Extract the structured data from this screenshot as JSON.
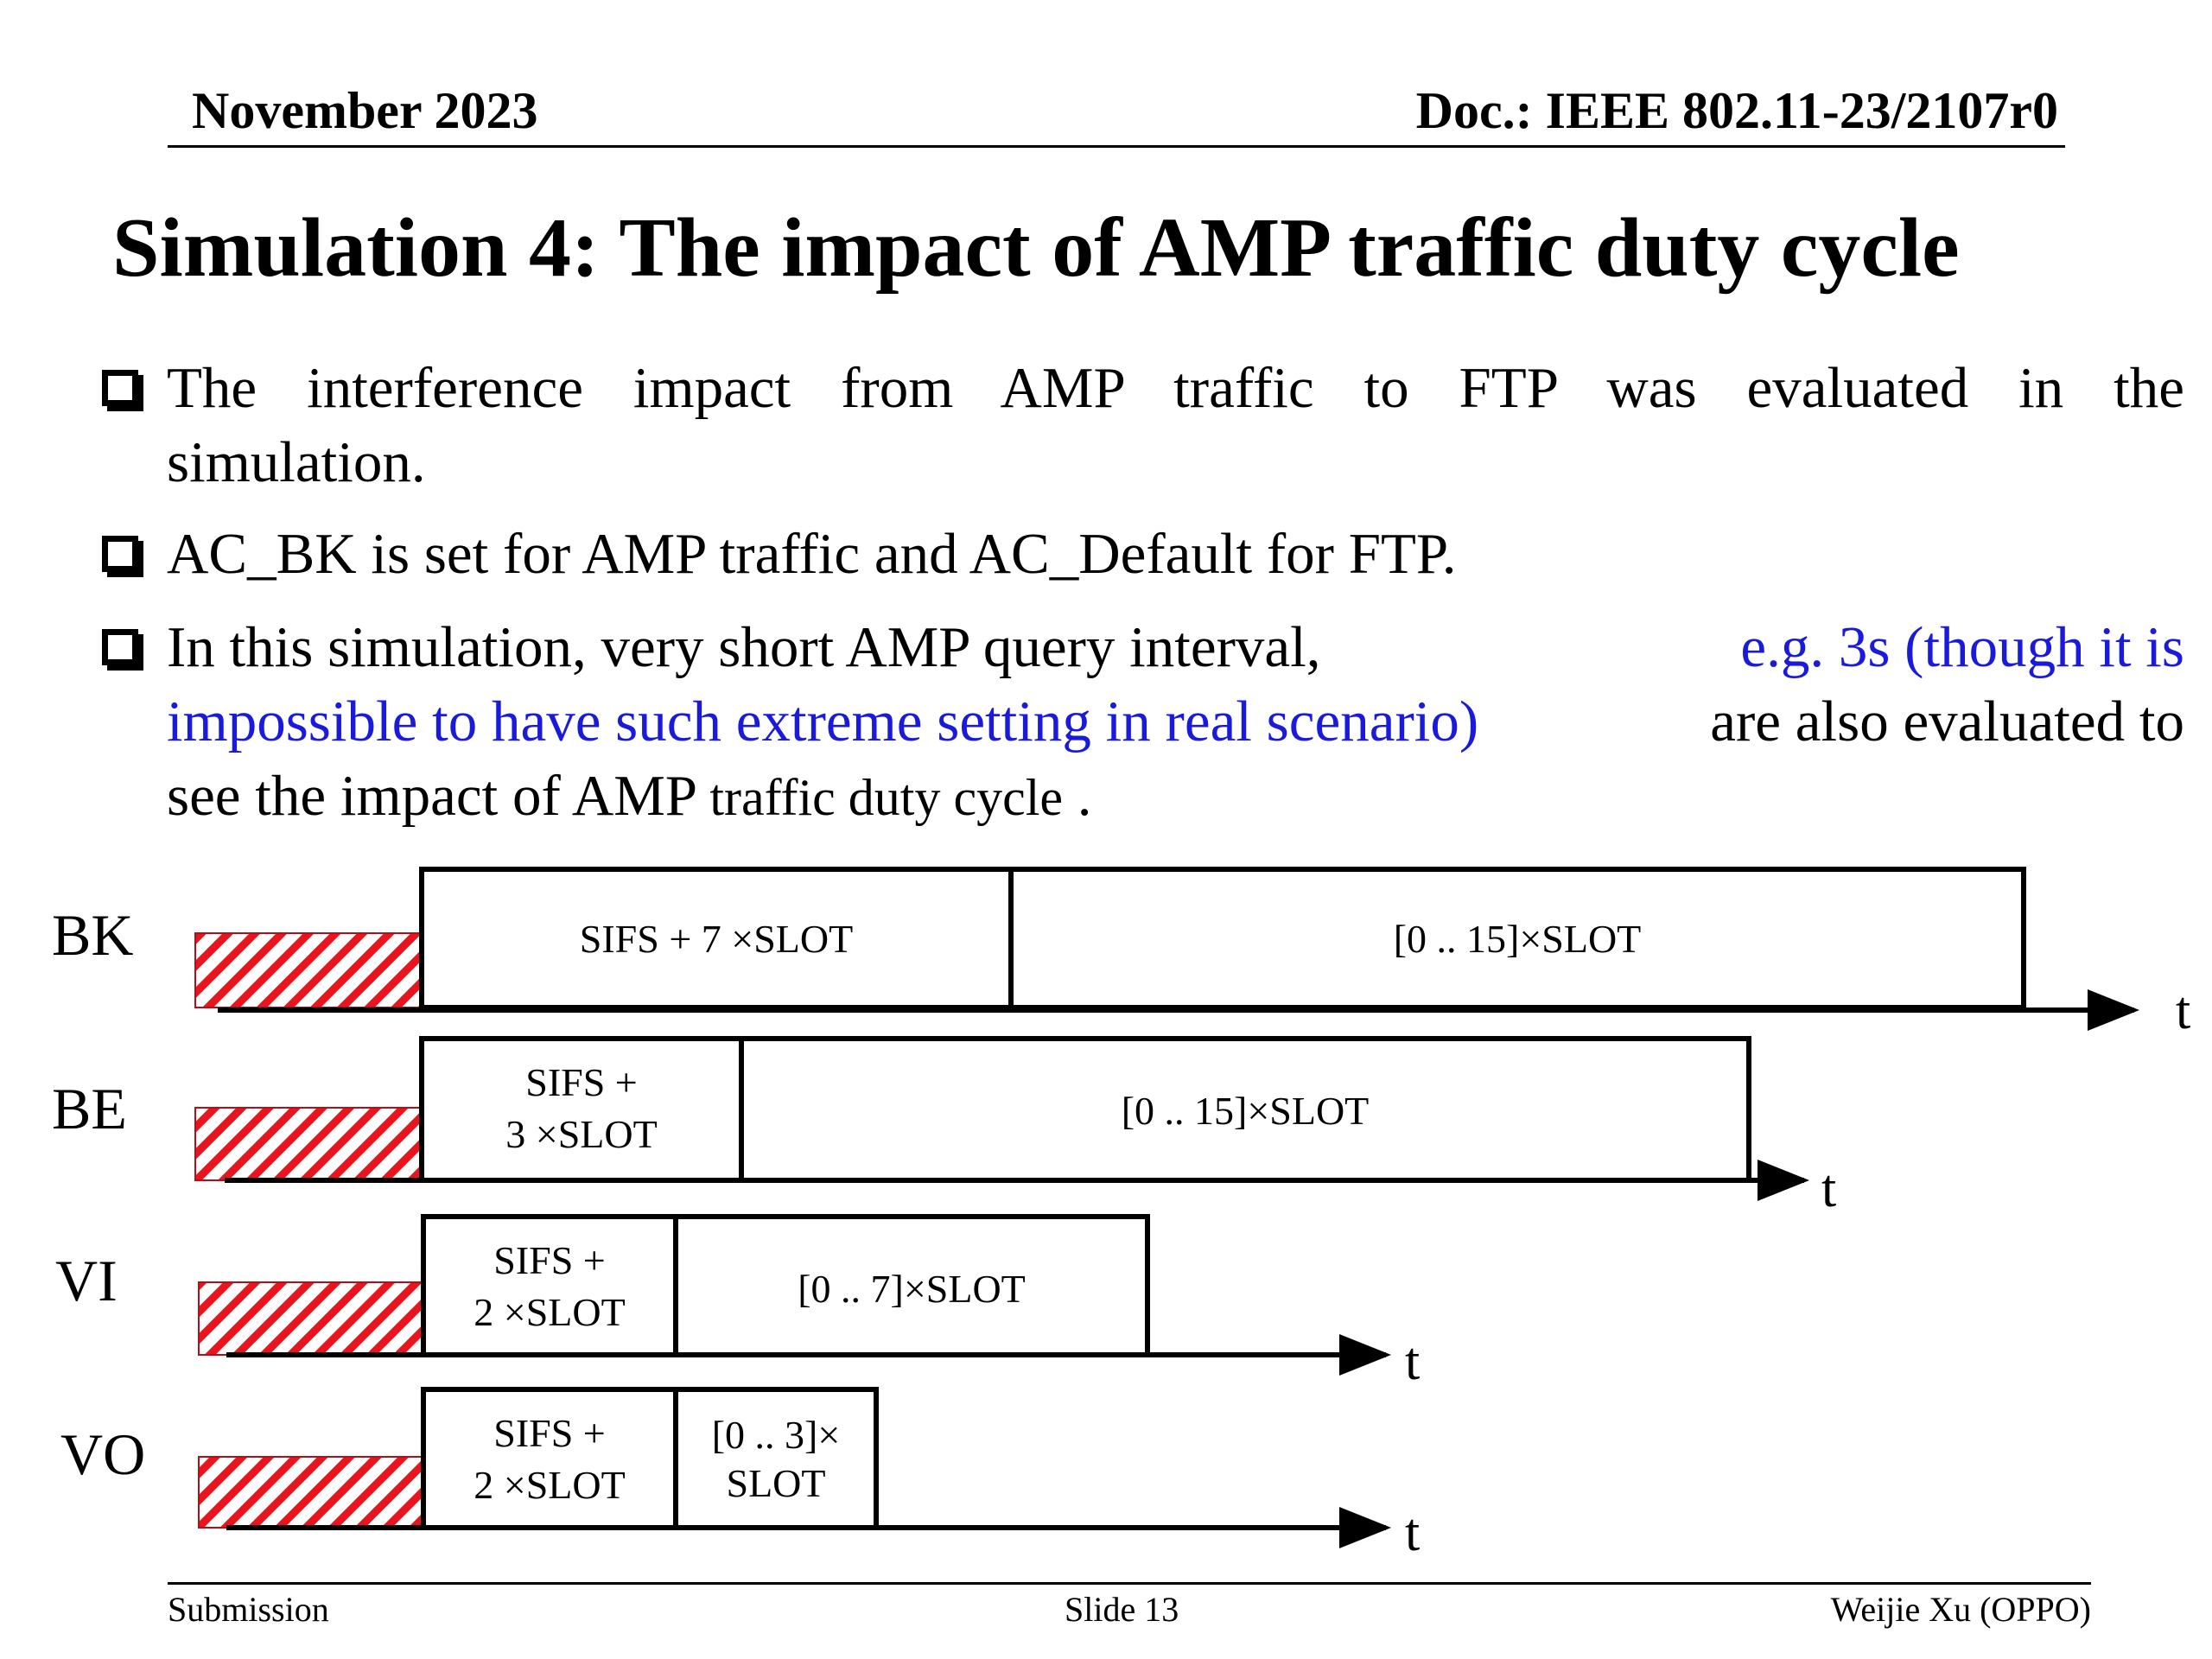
{
  "header": {
    "date": "November 2023",
    "doc": "Doc.: IEEE 802.11-23/2107r0"
  },
  "title": "Simulation 4: The impact of AMP traffic duty cycle",
  "bullets": [
    {
      "text_line1": "The interference impact from AMP traffic to FTP was evaluated in the",
      "text_line2": "simulation."
    },
    {
      "text": "AC_BK is set for AMP traffic and AC_Default for FTP."
    },
    {
      "line1_black": "In this simulation, very short AMP query interval,",
      "line1_blue": "e.g. 3s (though it is",
      "line2_blue": "impossible to have such extreme setting in real scenario)",
      "line2_black": "are also evaluated to",
      "line3_a": "see the impact of AMP",
      "line3_b": "traffic duty cycle",
      "line3_c": " ."
    }
  ],
  "diagram": {
    "rows": [
      {
        "label": "BK",
        "aifs_line1": "SIFS + 7 ×SLOT",
        "aifs_line2": "",
        "backoff_line1": "[0 .. 15]×SLOT",
        "backoff_line2": "",
        "axis": "t"
      },
      {
        "label": "BE",
        "aifs_line1": "SIFS +",
        "aifs_line2": "3 ×SLOT",
        "backoff_line1": "[0 .. 15]×SLOT",
        "backoff_line2": "",
        "axis": "t"
      },
      {
        "label": "VI",
        "aifs_line1": "SIFS +",
        "aifs_line2": "2 ×SLOT",
        "backoff_line1": "[0 .. 7]×SLOT",
        "backoff_line2": "",
        "axis": "t"
      },
      {
        "label": "VO",
        "aifs_line1": "SIFS +",
        "aifs_line2": "2 ×SLOT",
        "backoff_line1": "[0 .. 3]×",
        "backoff_line2": "SLOT",
        "axis": "t"
      }
    ],
    "hatch_color": "#e8141e"
  },
  "footer": {
    "left": "Submission",
    "center": "Slide 13",
    "right": "Weijie Xu (OPPO)"
  }
}
